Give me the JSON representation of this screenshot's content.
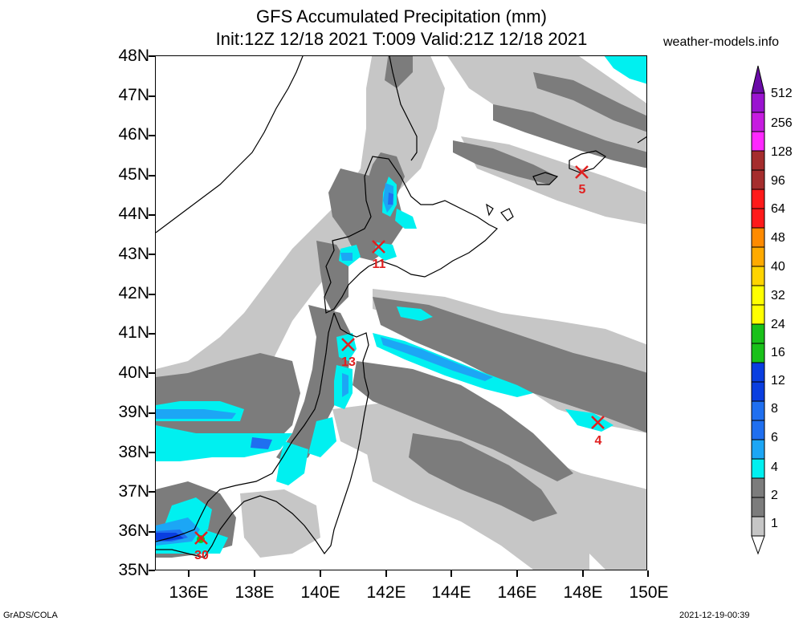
{
  "title": {
    "line1": "GFS Accumulated Precipitation (mm)",
    "line2": "Init:12Z 12/18 2021 T:009 Valid:21Z 12/18 2021",
    "site": "weather-models.info"
  },
  "axes": {
    "lat_labels": [
      "48N",
      "47N",
      "46N",
      "45N",
      "44N",
      "43N",
      "42N",
      "41N",
      "40N",
      "39N",
      "38N",
      "37N",
      "36N",
      "35N"
    ],
    "lon_labels": [
      "136E",
      "138E",
      "140E",
      "142E",
      "144E",
      "146E",
      "148E",
      "150E"
    ],
    "lat_range": [
      35,
      48
    ],
    "lon_range": [
      135,
      150
    ]
  },
  "legend": {
    "labels": [
      "512",
      "256",
      "128",
      "96",
      "64",
      "48",
      "40",
      "32",
      "24",
      "16",
      "12",
      "8",
      "6",
      "4",
      "2",
      "1"
    ],
    "colors": [
      "#6a0ba8",
      "#9a13d0",
      "#c61ce0",
      "#ff28ff",
      "#a52d2d",
      "#ff1a1a",
      "#ff8a00",
      "#ffaa00",
      "#ffd400",
      "#ffff00",
      "#19c119",
      "#0a3ee0",
      "#1f6ff0",
      "#1ca6f5",
      "#00f0f0",
      "#7c7c7c",
      "#c6c6c6",
      "#ffffff"
    ]
  },
  "markers": [
    {
      "name": "marker-hokkaido-north",
      "value": "5",
      "lon": 148.0,
      "lat": 45.05
    },
    {
      "name": "marker-hokkaido-west",
      "value": "11",
      "lon": 141.8,
      "lat": 43.2
    },
    {
      "name": "marker-tohoku-north",
      "value": "13",
      "lon": 140.85,
      "lat": 40.7
    },
    {
      "name": "marker-pacific",
      "value": "4",
      "lon": 148.5,
      "lat": 38.7
    },
    {
      "name": "marker-honshu-west",
      "value": "30",
      "lon": 136.4,
      "lat": 35.8
    }
  ],
  "colors": {
    "light_gray": "#c6c6c6",
    "dark_gray": "#7c7c7c",
    "cyan": "#00f0f0",
    "blue_6": "#1ca6f5",
    "blue_8": "#1f6ff0",
    "blue_12": "#0a3ee0",
    "green_16": "#19c119",
    "marker": "#e02020"
  },
  "footer": {
    "left": "GrADS/COLA",
    "right": "2021-12-19-00:39"
  }
}
